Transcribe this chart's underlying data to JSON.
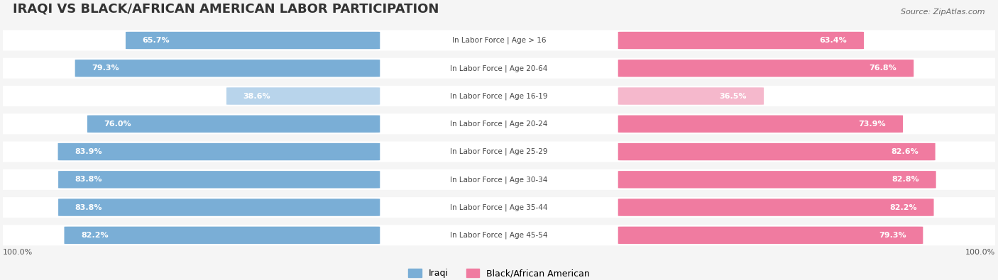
{
  "title": "IRAQI VS BLACK/AFRICAN AMERICAN LABOR PARTICIPATION",
  "source": "Source: ZipAtlas.com",
  "categories": [
    "In Labor Force | Age > 16",
    "In Labor Force | Age 20-64",
    "In Labor Force | Age 16-19",
    "In Labor Force | Age 20-24",
    "In Labor Force | Age 25-29",
    "In Labor Force | Age 30-34",
    "In Labor Force | Age 35-44",
    "In Labor Force | Age 45-54"
  ],
  "iraqi_values": [
    65.7,
    79.3,
    38.6,
    76.0,
    83.9,
    83.8,
    83.8,
    82.2
  ],
  "black_values": [
    63.4,
    76.8,
    36.5,
    73.9,
    82.6,
    82.8,
    82.2,
    79.3
  ],
  "iraqi_color": "#7aaed6",
  "iraqi_color_light": "#b8d4eb",
  "black_color": "#f07ba0",
  "black_color_light": "#f5b8cc",
  "bg_color": "#f5f5f5",
  "row_bg": "#ebebeb",
  "max_value": 100.0,
  "legend_iraqi": "Iraqi",
  "legend_black": "Black/African American",
  "title_fontsize": 13,
  "label_fontsize": 9
}
